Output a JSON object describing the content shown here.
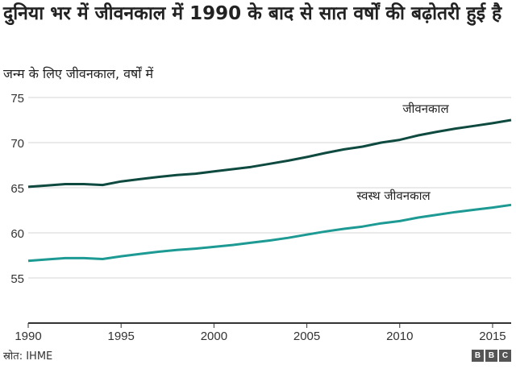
{
  "title": "दुनिया भर में जीवनकाल में 1990 के बाद से सात वर्षों की बढ़ोतरी हुई है",
  "subtitle": "जन्म के लिए जीवनकाल, वर्षों में",
  "source": "स्रोत: IHME",
  "logo": "BBC",
  "colors": {
    "life": "#0f4a40",
    "healthy": "#1d9a93",
    "grid": "#d6d6d6",
    "axis": "#333333"
  },
  "chart_data": {
    "type": "line",
    "title": "दुनिया भर में जीवनकाल में 1990 के बाद से सात वर्षों की बढ़ोतरी हुई है",
    "ylabel": "जन्म के लिए जीवनकाल, वर्षों में",
    "xlabel": "",
    "xlim": [
      1990,
      2016
    ],
    "ylim": [
      50,
      75
    ],
    "yticks": [
      55,
      60,
      65,
      70,
      75
    ],
    "xticks": [
      1990,
      1995,
      2000,
      2005,
      2010,
      2015
    ],
    "grid": true,
    "x": [
      1990,
      1991,
      1992,
      1993,
      1994,
      1995,
      1996,
      1997,
      1998,
      1999,
      2000,
      2001,
      2002,
      2003,
      2004,
      2005,
      2006,
      2007,
      2008,
      2009,
      2010,
      2011,
      2012,
      2013,
      2014,
      2015,
      2016
    ],
    "series": [
      {
        "name": "जीवनकाल",
        "values": [
          65.1,
          65.25,
          65.4,
          65.4,
          65.3,
          65.7,
          65.95,
          66.2,
          66.4,
          66.55,
          66.8,
          67.05,
          67.3,
          67.65,
          68.0,
          68.4,
          68.85,
          69.25,
          69.55,
          70.0,
          70.3,
          70.8,
          71.2,
          71.55,
          71.85,
          72.15,
          72.5
        ]
      },
      {
        "name": "स्वस्थ जीवनकाल",
        "values": [
          56.9,
          57.05,
          57.2,
          57.2,
          57.1,
          57.4,
          57.65,
          57.9,
          58.1,
          58.25,
          58.45,
          58.65,
          58.9,
          59.15,
          59.45,
          59.8,
          60.15,
          60.45,
          60.7,
          61.05,
          61.3,
          61.7,
          62.0,
          62.3,
          62.55,
          62.8,
          63.1
        ]
      }
    ]
  }
}
